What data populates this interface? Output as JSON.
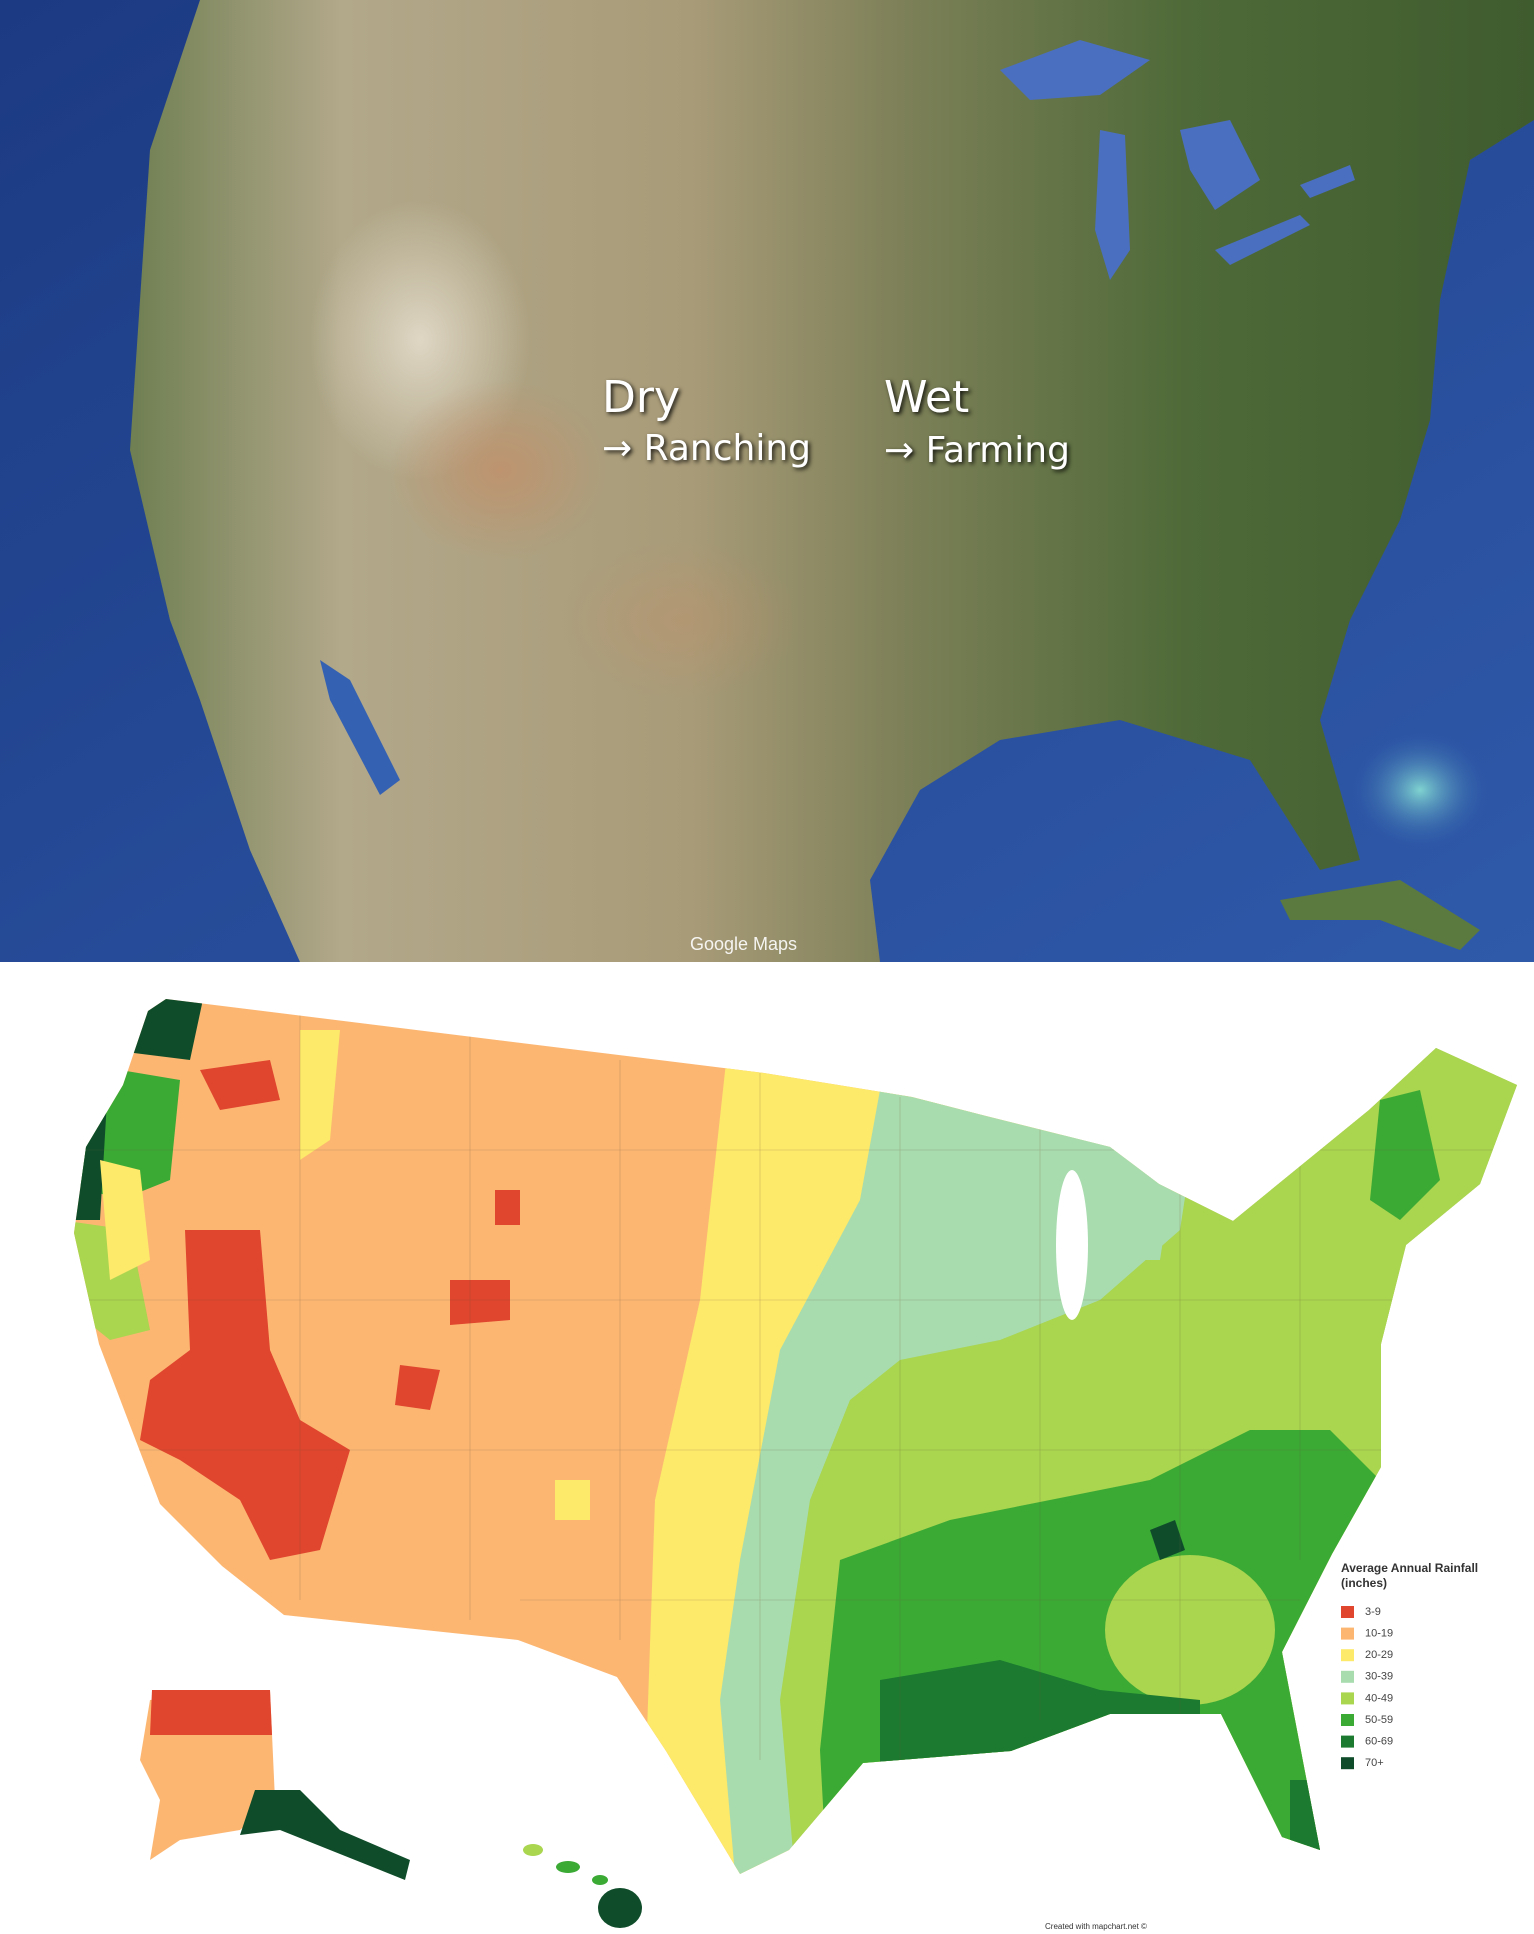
{
  "satellite": {
    "labels": [
      {
        "title": "Dry",
        "subtitle": "→ Ranching"
      },
      {
        "title": "Wet",
        "subtitle": "→ Farming"
      }
    ],
    "attribution": "Google Maps"
  },
  "rainfall_map": {
    "legend": {
      "title": "Average Annual Rainfall (inches)",
      "items": [
        {
          "label": "3-9",
          "color": "#e0452d"
        },
        {
          "label": "10-19",
          "color": "#fcb672"
        },
        {
          "label": "20-29",
          "color": "#fde96a"
        },
        {
          "label": "30-39",
          "color": "#a8dcae"
        },
        {
          "label": "40-49",
          "color": "#a9d54f"
        },
        {
          "label": "50-59",
          "color": "#3aaa35"
        },
        {
          "label": "60-69",
          "color": "#1b7a2f"
        },
        {
          "label": "70+",
          "color": "#0f4d2a"
        }
      ]
    },
    "credit": "Created with mapchart.net ©"
  }
}
